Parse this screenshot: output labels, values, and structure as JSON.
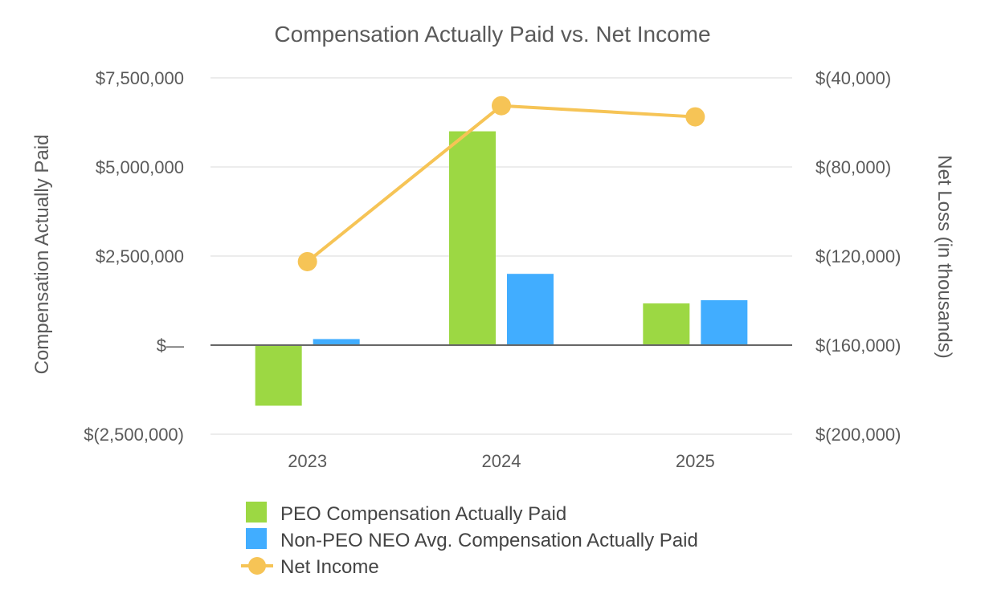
{
  "chart_data": {
    "type": "bar",
    "title": "Compensation Actually Paid vs. Net Income",
    "categories": [
      "2023",
      "2024",
      "2025"
    ],
    "xlabel": "",
    "ylabel": "Compensation Actually Paid",
    "y2label": "Net Loss (in thousands)",
    "ylim": [
      -2500000,
      7500000
    ],
    "y2lim": [
      -200000,
      -40000
    ],
    "yticks": [
      -2500000,
      0,
      2500000,
      5000000,
      7500000
    ],
    "ytick_labels": [
      "$(2,500,000)",
      "$—",
      "$2,500,000",
      "$5,000,000",
      "$7,500,000"
    ],
    "y2ticks": [
      -200000,
      -160000,
      -120000,
      -80000,
      -40000
    ],
    "y2tick_labels": [
      "$(200,000)",
      "$(160,000)",
      "$(120,000)",
      "$(80,000)",
      "$(40,000)"
    ],
    "grid": true,
    "legend_position": "bottom",
    "series": [
      {
        "name": "PEO Compensation Actually Paid",
        "type": "bar",
        "axis": "left",
        "color": "#9cd843",
        "values": [
          -1700000,
          6000000,
          1170000
        ]
      },
      {
        "name": "Non-PEO NEO Avg. Compensation Actually Paid",
        "type": "bar",
        "axis": "left",
        "color": "#41adff",
        "values": [
          170000,
          2000000,
          1260000
        ]
      },
      {
        "name": "Net Income",
        "type": "line",
        "axis": "right",
        "color": "#f6c456",
        "values": [
          -122500,
          -52500,
          -57500
        ]
      }
    ]
  }
}
